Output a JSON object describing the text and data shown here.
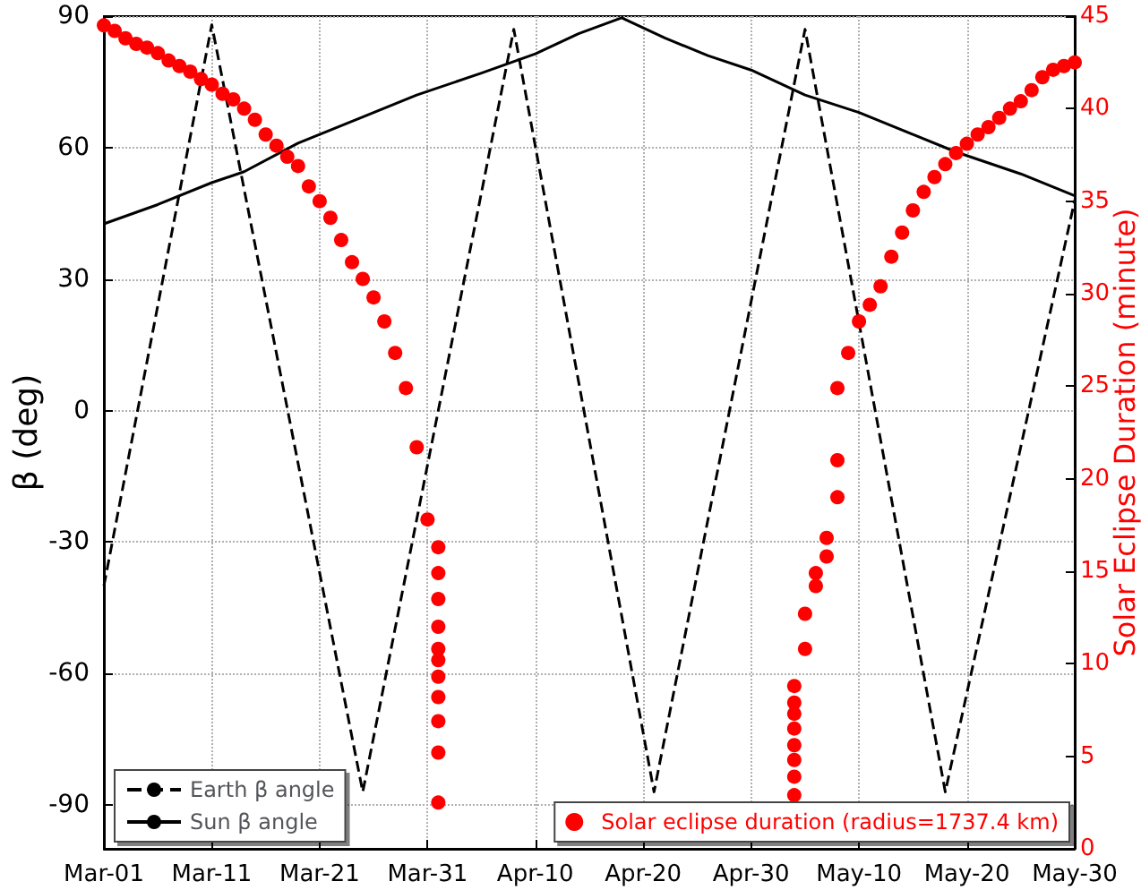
{
  "chart_data": {
    "type": "line",
    "ylabel": "β (deg)",
    "y2label": "Solar Eclipse Duration (minute)",
    "xlim": [
      "--03-01",
      "--05-30"
    ],
    "xticks": [
      {
        "value": "--03-01",
        "label": "Mar-01"
      },
      {
        "value": "--03-11",
        "label": "Mar-11"
      },
      {
        "value": "--03-21",
        "label": "Mar-21"
      },
      {
        "value": "--03-31",
        "label": "Mar-31"
      },
      {
        "value": "--04-10",
        "label": "Apr-10"
      },
      {
        "value": "--04-20",
        "label": "Apr-20"
      },
      {
        "value": "--04-30",
        "label": "Apr-30"
      },
      {
        "value": "--05-10",
        "label": "May-10"
      },
      {
        "value": "--05-20",
        "label": "May-20"
      },
      {
        "value": "--05-30",
        "label": "May-30"
      }
    ],
    "ylim": [
      -100,
      90
    ],
    "yticks": [
      -90,
      -60,
      -30,
      0,
      30,
      60,
      90
    ],
    "y2lim": [
      0,
      45
    ],
    "y2ticks": [
      0,
      5,
      10,
      15,
      20,
      25,
      30,
      35,
      40,
      45
    ],
    "grid": true,
    "legend": "bottom",
    "series": [
      {
        "name": "Earth β angle",
        "color": "#000000",
        "line_style": "dashed",
        "marker": "none",
        "x": [
          "--03-01",
          "--03-11",
          "--03-25",
          "--04-08",
          "--04-21",
          "--05-05",
          "--05-18",
          "--05-30"
        ],
        "values": [
          -40,
          88,
          -87,
          87,
          -87,
          87,
          -87,
          48
        ]
      },
      {
        "name": "Sun β angle",
        "color": "#000000",
        "line_style": "solid",
        "marker": "none",
        "x": [
          "--03-01",
          "--03-06",
          "--03-11",
          "--03-14",
          "--03-19",
          "--03-25",
          "--03-30",
          "--04-05",
          "--04-10",
          "--04-14",
          "--04-18",
          "--04-22",
          "--04-26",
          "--04-30",
          "--05-05",
          "--05-10",
          "--05-15",
          "--05-19",
          "--05-25",
          "--05-30"
        ],
        "values": [
          42.6,
          47,
          52,
          54.5,
          61,
          67,
          72,
          77,
          81.4,
          86,
          89.6,
          85,
          81,
          77.7,
          72,
          68,
          63,
          59,
          54,
          49
        ]
      },
      {
        "name": "Solar eclipse duration (radius=1737.4 km)",
        "type": "scatter",
        "axis": "y2",
        "color": "#ff0000",
        "marker": "circle",
        "x": [
          "--03-01",
          "--03-02",
          "--03-03",
          "--03-04",
          "--03-05",
          "--03-06",
          "--03-07",
          "--03-08",
          "--03-09",
          "--03-10",
          "--03-11",
          "--03-12",
          "--03-13",
          "--03-14",
          "--03-15",
          "--03-16",
          "--03-17",
          "--03-18",
          "--03-19",
          "--03-20",
          "--03-21",
          "--03-22",
          "--03-23",
          "--03-24",
          "--03-25",
          "--03-26",
          "--03-27",
          "--03-28",
          "--03-29",
          "--03-30",
          "--03-31",
          "--04-01",
          "--04-01",
          "--04-01",
          "--04-01",
          "--04-01",
          "--04-01",
          "--04-01",
          "--04-01",
          "--04-01",
          "--04-01",
          "--04-01",
          "--05-04",
          "--05-04",
          "--05-04",
          "--05-04",
          "--05-04",
          "--05-04",
          "--05-04",
          "--05-04",
          "--05-05",
          "--05-05",
          "--05-06",
          "--05-06",
          "--05-07",
          "--05-07",
          "--05-08",
          "--05-08",
          "--05-08",
          "--05-09",
          "--05-10",
          "--05-11",
          "--05-12",
          "--05-13",
          "--05-14",
          "--05-15",
          "--05-16",
          "--05-17",
          "--05-18",
          "--05-19",
          "--05-20",
          "--05-21",
          "--05-22",
          "--05-23",
          "--05-24",
          "--05-25",
          "--05-26",
          "--05-27",
          "--05-28",
          "--05-29",
          "--05-30"
        ],
        "values": [
          44.5,
          44.2,
          43.8,
          43.5,
          43.3,
          43,
          42.6,
          42.3,
          42,
          41.6,
          41.3,
          40.8,
          40.5,
          40,
          39.4,
          38.6,
          38,
          37.4,
          36.9,
          35.8,
          35,
          34.1,
          32.9,
          31.7,
          30.8,
          29.8,
          28.5,
          26.8,
          24.9,
          21.7,
          17.8,
          16.3,
          14.9,
          13.5,
          12,
          10.8,
          10.2,
          9.3,
          8.2,
          6.9,
          5.2,
          2.5,
          2.9,
          3.9,
          4.8,
          5.6,
          6.5,
          7.3,
          7.9,
          8.8,
          10.8,
          12.7,
          14.2,
          14.9,
          15.8,
          16.8,
          19,
          21,
          24.9,
          26.8,
          28.5,
          29.4,
          30.4,
          32,
          33.3,
          34.5,
          35.5,
          36.3,
          37,
          37.6,
          38.1,
          38.6,
          39,
          39.5,
          40,
          40.4,
          41,
          41.7,
          42.1,
          42.3,
          42.5
        ]
      }
    ]
  }
}
